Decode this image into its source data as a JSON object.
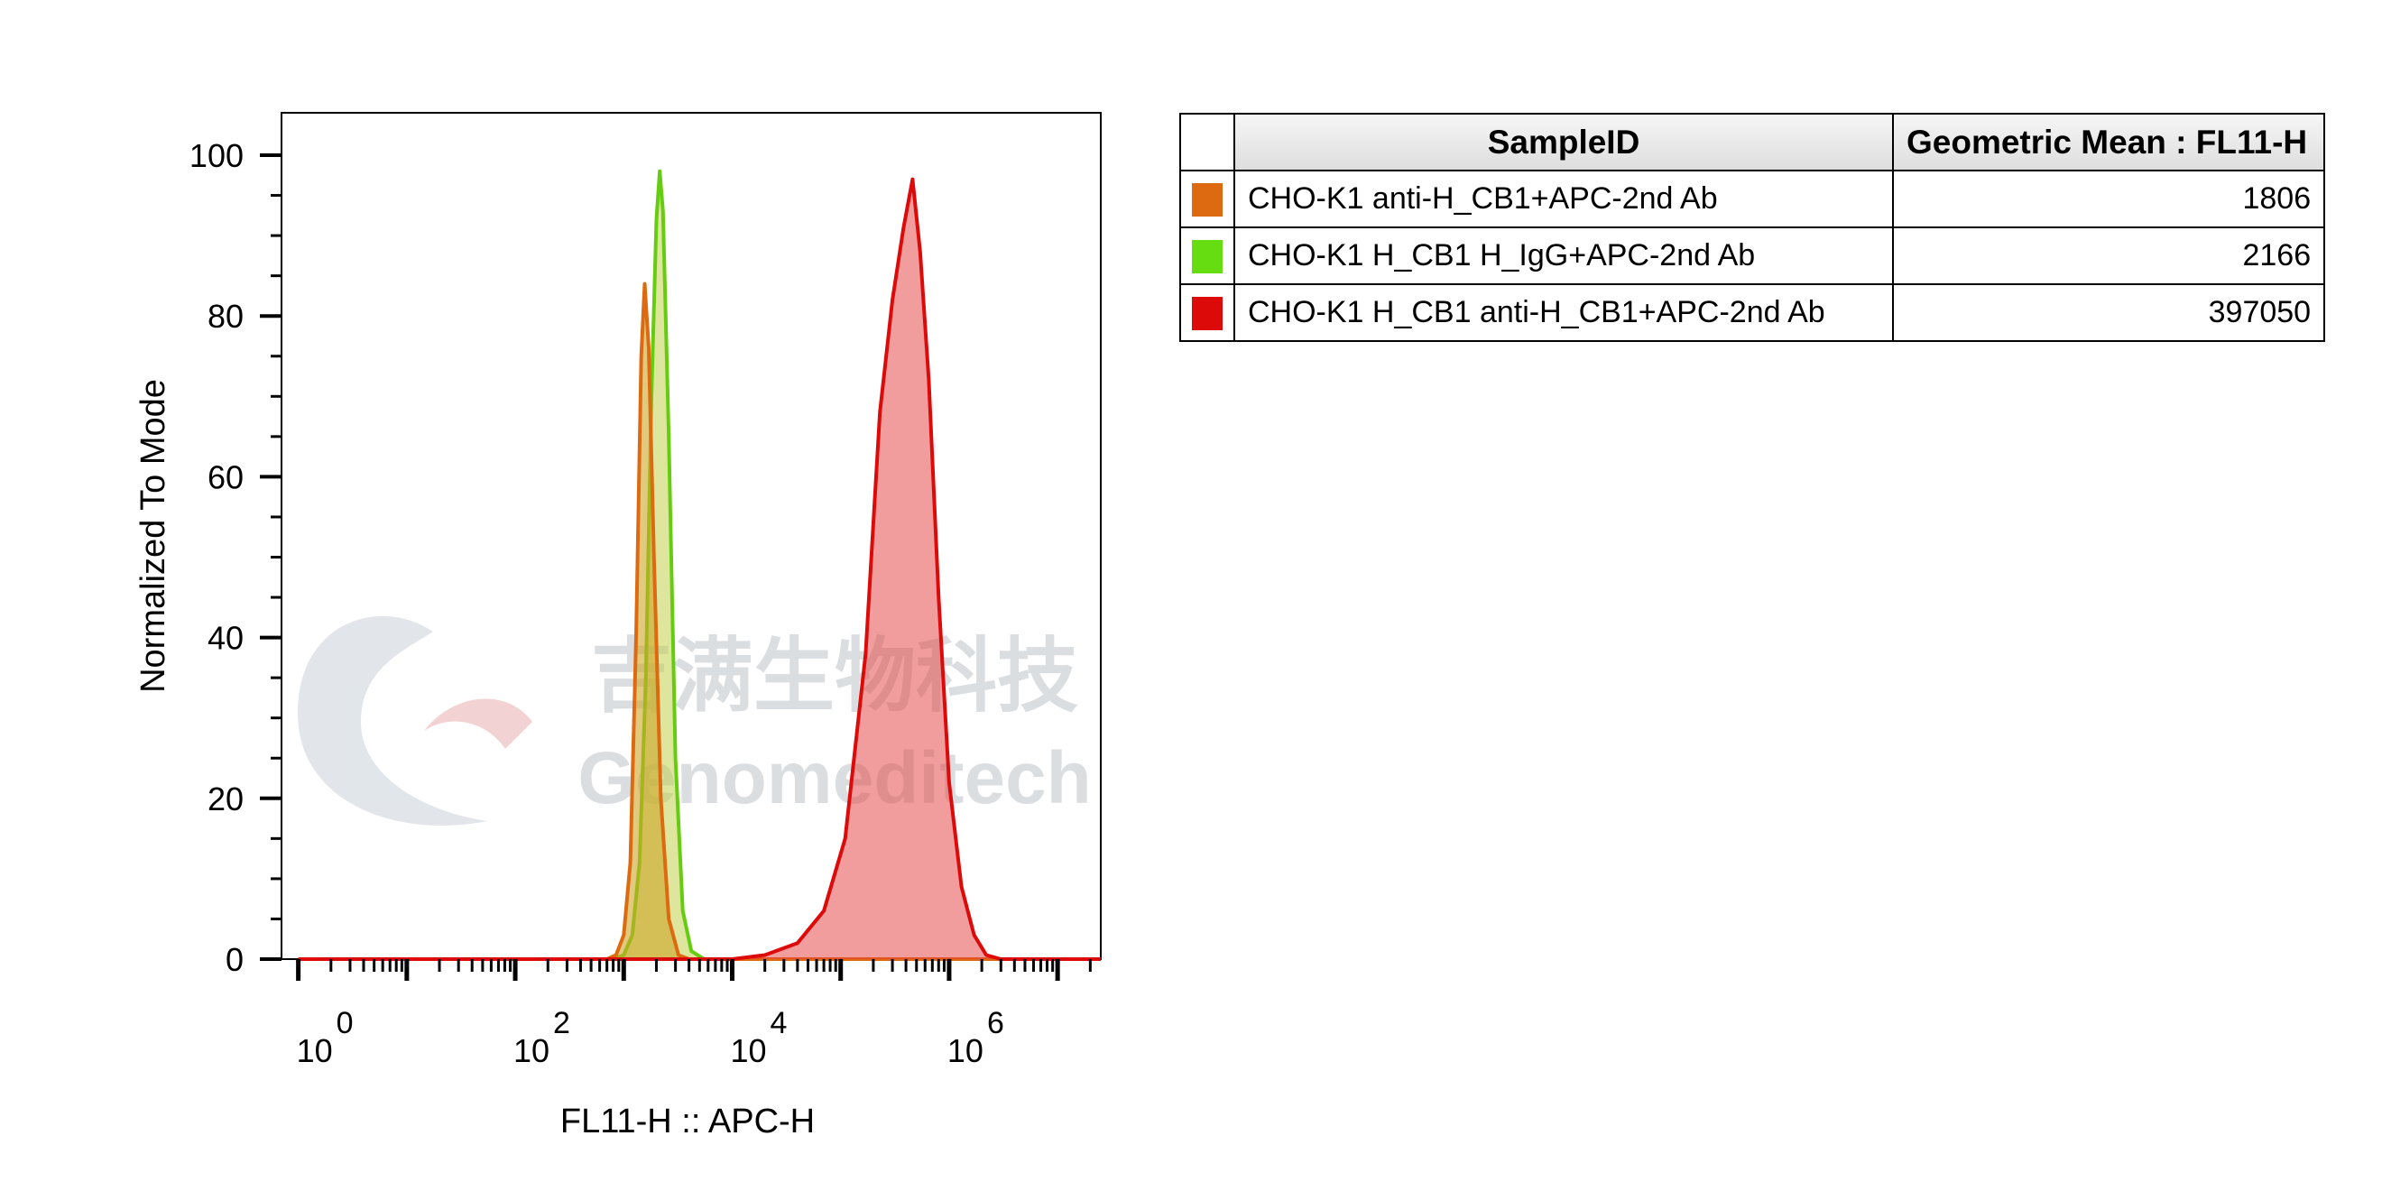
{
  "chart_data": {
    "type": "area",
    "xlabel": "FL11-H :: APC-H",
    "ylabel": "Normalized To Mode",
    "xscale": "log",
    "xlim": [
      0.7,
      25000000
    ],
    "ylim": [
      0,
      100
    ],
    "x_tick_labels": [
      {
        "base": "10",
        "exp": "0",
        "value": 1
      },
      {
        "base": "10",
        "exp": "2",
        "value": 100
      },
      {
        "base": "10",
        "exp": "4",
        "value": 10000
      },
      {
        "base": "10",
        "exp": "6",
        "value": 1000000
      }
    ],
    "y_ticks": [
      0,
      20,
      40,
      60,
      80,
      100
    ],
    "grid": false,
    "legend": {
      "placement": "right",
      "header": {
        "sample": "SampleID",
        "stat": "Geometric Mean : FL11-H"
      }
    },
    "series": [
      {
        "name": "CHO-K1 H_CB1 H_IgG+APC-2nd Ab",
        "geometric_mean": "2166",
        "color": "#66cc11",
        "fill": "rgba(190,205,60,0.5)",
        "points": [
          [
            1,
            0
          ],
          [
            800,
            0
          ],
          [
            1000,
            0.5
          ],
          [
            1200,
            3
          ],
          [
            1400,
            12
          ],
          [
            1600,
            35
          ],
          [
            1800,
            70
          ],
          [
            2000,
            92
          ],
          [
            2150,
            98
          ],
          [
            2300,
            93
          ],
          [
            2600,
            65
          ],
          [
            3000,
            25
          ],
          [
            3500,
            6
          ],
          [
            4200,
            1
          ],
          [
            5500,
            0
          ],
          [
            25000000,
            0
          ]
        ]
      },
      {
        "name": "CHO-K1 anti-H_CB1+APC-2nd Ab",
        "geometric_mean": "1806",
        "color": "#dd6a10",
        "fill": "rgba(205,165,40,0.6)",
        "points": [
          [
            1,
            0
          ],
          [
            700,
            0
          ],
          [
            850,
            0.5
          ],
          [
            1000,
            3
          ],
          [
            1150,
            12
          ],
          [
            1300,
            40
          ],
          [
            1450,
            75
          ],
          [
            1560,
            84
          ],
          [
            1700,
            76
          ],
          [
            1900,
            50
          ],
          [
            2200,
            20
          ],
          [
            2600,
            5
          ],
          [
            3200,
            0.5
          ],
          [
            4000,
            0
          ],
          [
            25000000,
            0
          ]
        ]
      },
      {
        "name": "CHO-K1 H_CB1 anti-H_CB1+APC-2nd Ab",
        "geometric_mean": "397050",
        "color": "#dd0a0a",
        "fill": "rgba(230,60,60,0.5)",
        "points": [
          [
            1,
            0
          ],
          [
            10000,
            0
          ],
          [
            20000,
            0.5
          ],
          [
            40000,
            2
          ],
          [
            70000,
            6
          ],
          [
            110000,
            15
          ],
          [
            170000,
            38
          ],
          [
            230000,
            68
          ],
          [
            300000,
            82
          ],
          [
            380000,
            91
          ],
          [
            460000,
            97
          ],
          [
            540000,
            88
          ],
          [
            650000,
            72
          ],
          [
            800000,
            45
          ],
          [
            1000000,
            22
          ],
          [
            1300000,
            9
          ],
          [
            1700000,
            3
          ],
          [
            2200000,
            0.5
          ],
          [
            3000000,
            0
          ],
          [
            25000000,
            0
          ]
        ]
      }
    ]
  },
  "legend_rows": [
    {
      "sample": "CHO-K1 anti-H_CB1+APC-2nd Ab",
      "value": "1806",
      "color": "#dd6a10"
    },
    {
      "sample": "CHO-K1 H_CB1 H_IgG+APC-2nd Ab",
      "value": "2166",
      "color": "#66dd11"
    },
    {
      "sample": "CHO-K1 H_CB1 anti-H_CB1+APC-2nd Ab",
      "value": "397050",
      "color": "#dd0a0a"
    }
  ],
  "watermark": {
    "chinese": "吉满生物科技",
    "english": "Genomeditech"
  }
}
